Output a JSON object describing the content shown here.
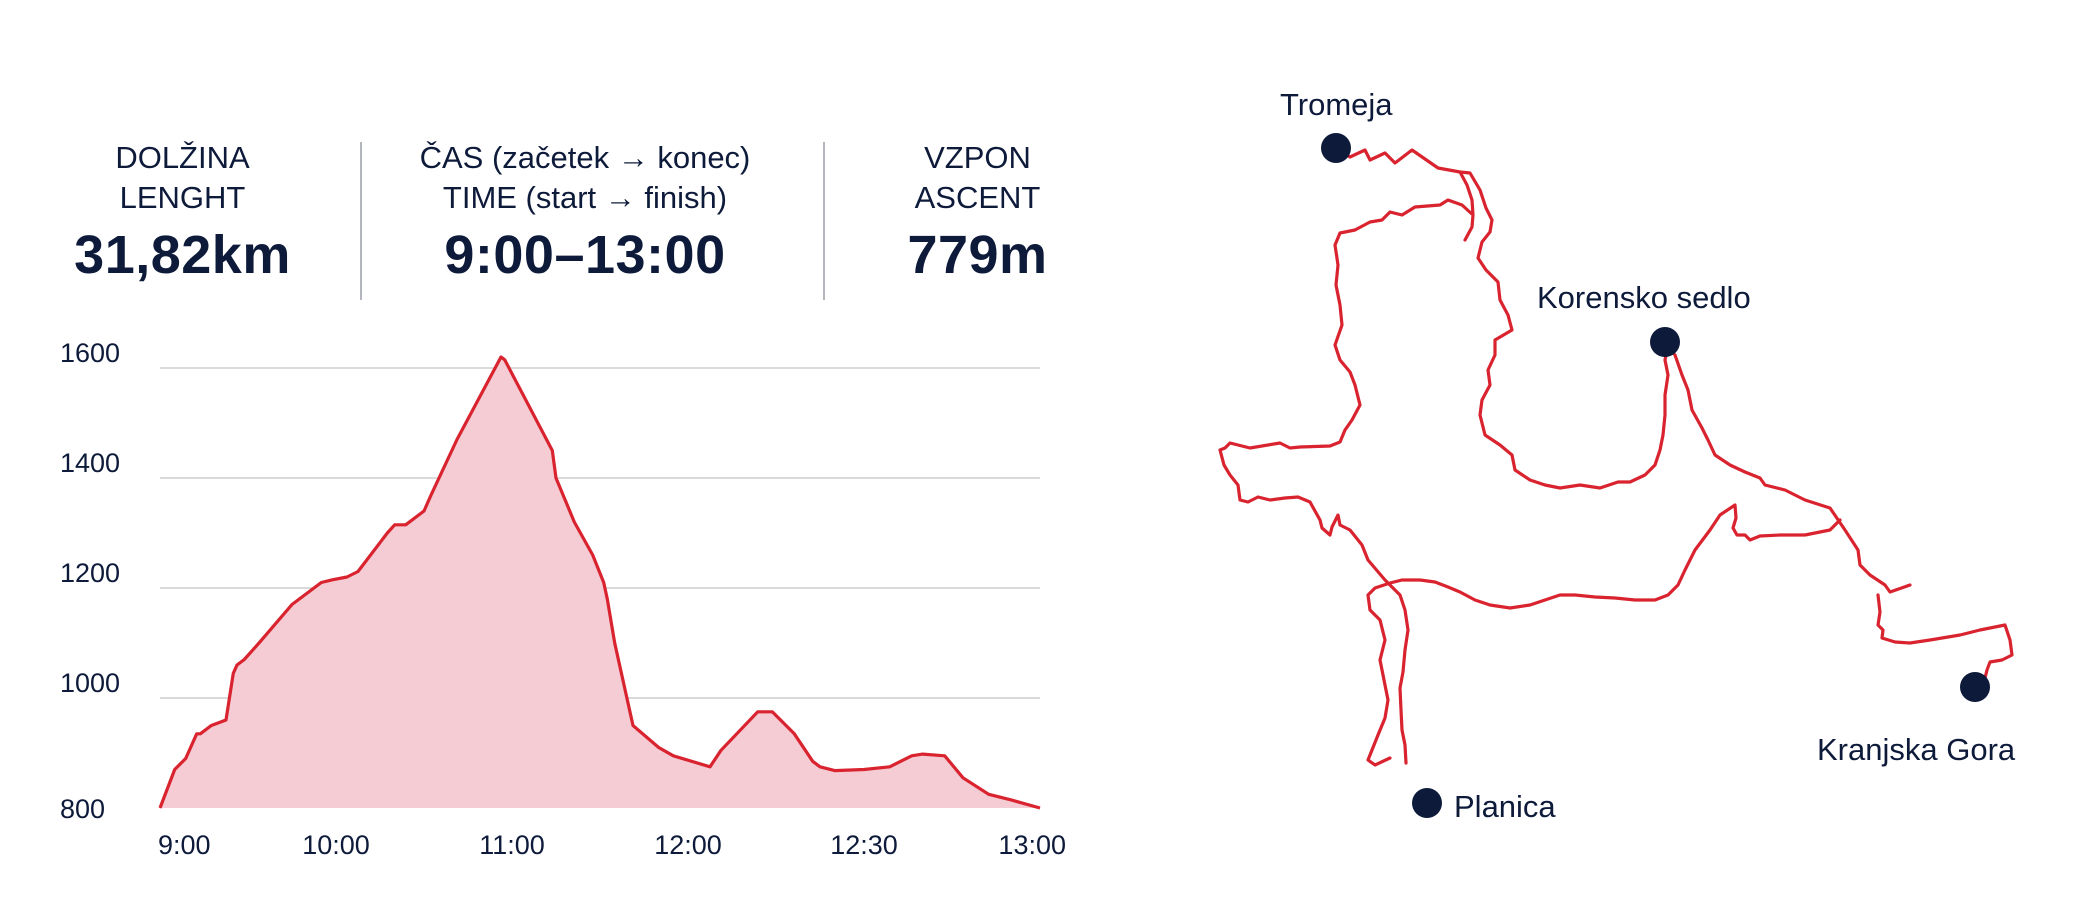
{
  "stats": {
    "length": {
      "label_sl": "DOLŽINA",
      "label_en": "LENGHT",
      "value": "31,82km"
    },
    "time": {
      "label_sl": "ČAS (začetek → konec)",
      "label_en": "TIME (start → finish)",
      "value": "9:00–13:00"
    },
    "ascent": {
      "label_sl": "VZPON",
      "label_en": "ASCENT",
      "value": "779m"
    }
  },
  "colors": {
    "line": "#d9232f",
    "fill": "#f5ccd4",
    "text": "#0d1a3a",
    "grid": "#c3c3c3",
    "marker": "#0d1a3a"
  },
  "chart_data": {
    "type": "area",
    "title": "",
    "xlabel": "",
    "ylabel": "",
    "x_ticks": [
      "9:00",
      "10:00",
      "11:00",
      "12:00",
      "12:30",
      "13:00"
    ],
    "y_ticks": [
      800,
      1000,
      1200,
      1400,
      1600
    ],
    "ylim": [
      800,
      1640
    ],
    "xlim": [
      0,
      240
    ],
    "grid": true,
    "series": [
      {
        "x": [
          0,
          4,
          7,
          10,
          11,
          14,
          18,
          20,
          21,
          23,
          27,
          36,
          44,
          47,
          51,
          54,
          62,
          64,
          67,
          72,
          74,
          81,
          93,
          94,
          107,
          108,
          113,
          118,
          121,
          122,
          124,
          129,
          136,
          140,
          150,
          153,
          163,
          167,
          173,
          178,
          180,
          184,
          192,
          199,
          205,
          208,
          214,
          219,
          226,
          232,
          240
        ],
        "y": [
          800,
          870,
          890,
          935,
          935,
          950,
          960,
          1045,
          1060,
          1070,
          1100,
          1170,
          1210,
          1215,
          1220,
          1230,
          1300,
          1315,
          1315,
          1340,
          1370,
          1470,
          1620,
          1615,
          1450,
          1400,
          1320,
          1260,
          1210,
          1180,
          1100,
          950,
          910,
          895,
          875,
          905,
          975,
          975,
          935,
          885,
          875,
          868,
          870,
          875,
          895,
          898,
          895,
          855,
          825,
          815,
          800
        ]
      }
    ]
  },
  "map": {
    "places": [
      {
        "name": "Tromeja"
      },
      {
        "name": "Korensko sedlo"
      },
      {
        "name": "Planica"
      },
      {
        "name": "Kranjska Gora"
      }
    ]
  }
}
